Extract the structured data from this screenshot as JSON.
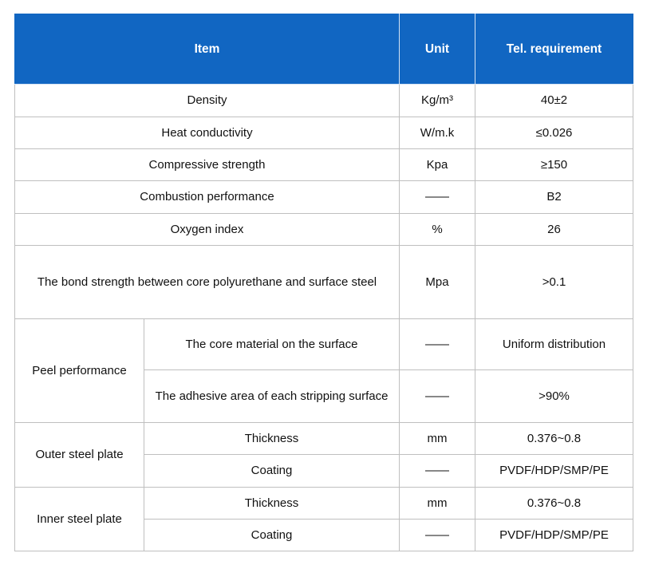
{
  "header": {
    "item": "Item",
    "unit": "Unit",
    "requirement": "Tel. requirement"
  },
  "rows": [
    {
      "item": "Density",
      "unit": "Kg/m³",
      "req": "40±2"
    },
    {
      "item": "Heat conductivity",
      "unit": "W/m.k",
      "req": "≤0.026"
    },
    {
      "item": "Compressive strength",
      "unit": "Kpa",
      "req": "≥150"
    },
    {
      "item": "Combustion performance",
      "unit": "——",
      "req": "B2"
    },
    {
      "item": "Oxygen index",
      "unit": "%",
      "req": "26"
    },
    {
      "item": "The bond strength between core polyurethane and surface steel",
      "unit": "Mpa",
      "req": ">0.1"
    }
  ],
  "peel": {
    "label": "Peel performance",
    "subrows": [
      {
        "item": "The core material on the surface",
        "unit": "——",
        "req": "Uniform distribution"
      },
      {
        "item": "The adhesive area of each stripping surface",
        "unit": "——",
        "req": ">90%"
      }
    ]
  },
  "outer": {
    "label": "Outer steel plate",
    "subrows": [
      {
        "item": "Thickness",
        "unit": "mm",
        "req": "0.376~0.8"
      },
      {
        "item": "Coating",
        "unit": "——",
        "req": "PVDF/HDP/SMP/PE"
      }
    ]
  },
  "inner": {
    "label": "Inner steel plate",
    "subrows": [
      {
        "item": "Thickness",
        "unit": "mm",
        "req": "0.376~0.8"
      },
      {
        "item": "Coating",
        "unit": "——",
        "req": "PVDF/HDP/SMP/PE"
      }
    ]
  }
}
